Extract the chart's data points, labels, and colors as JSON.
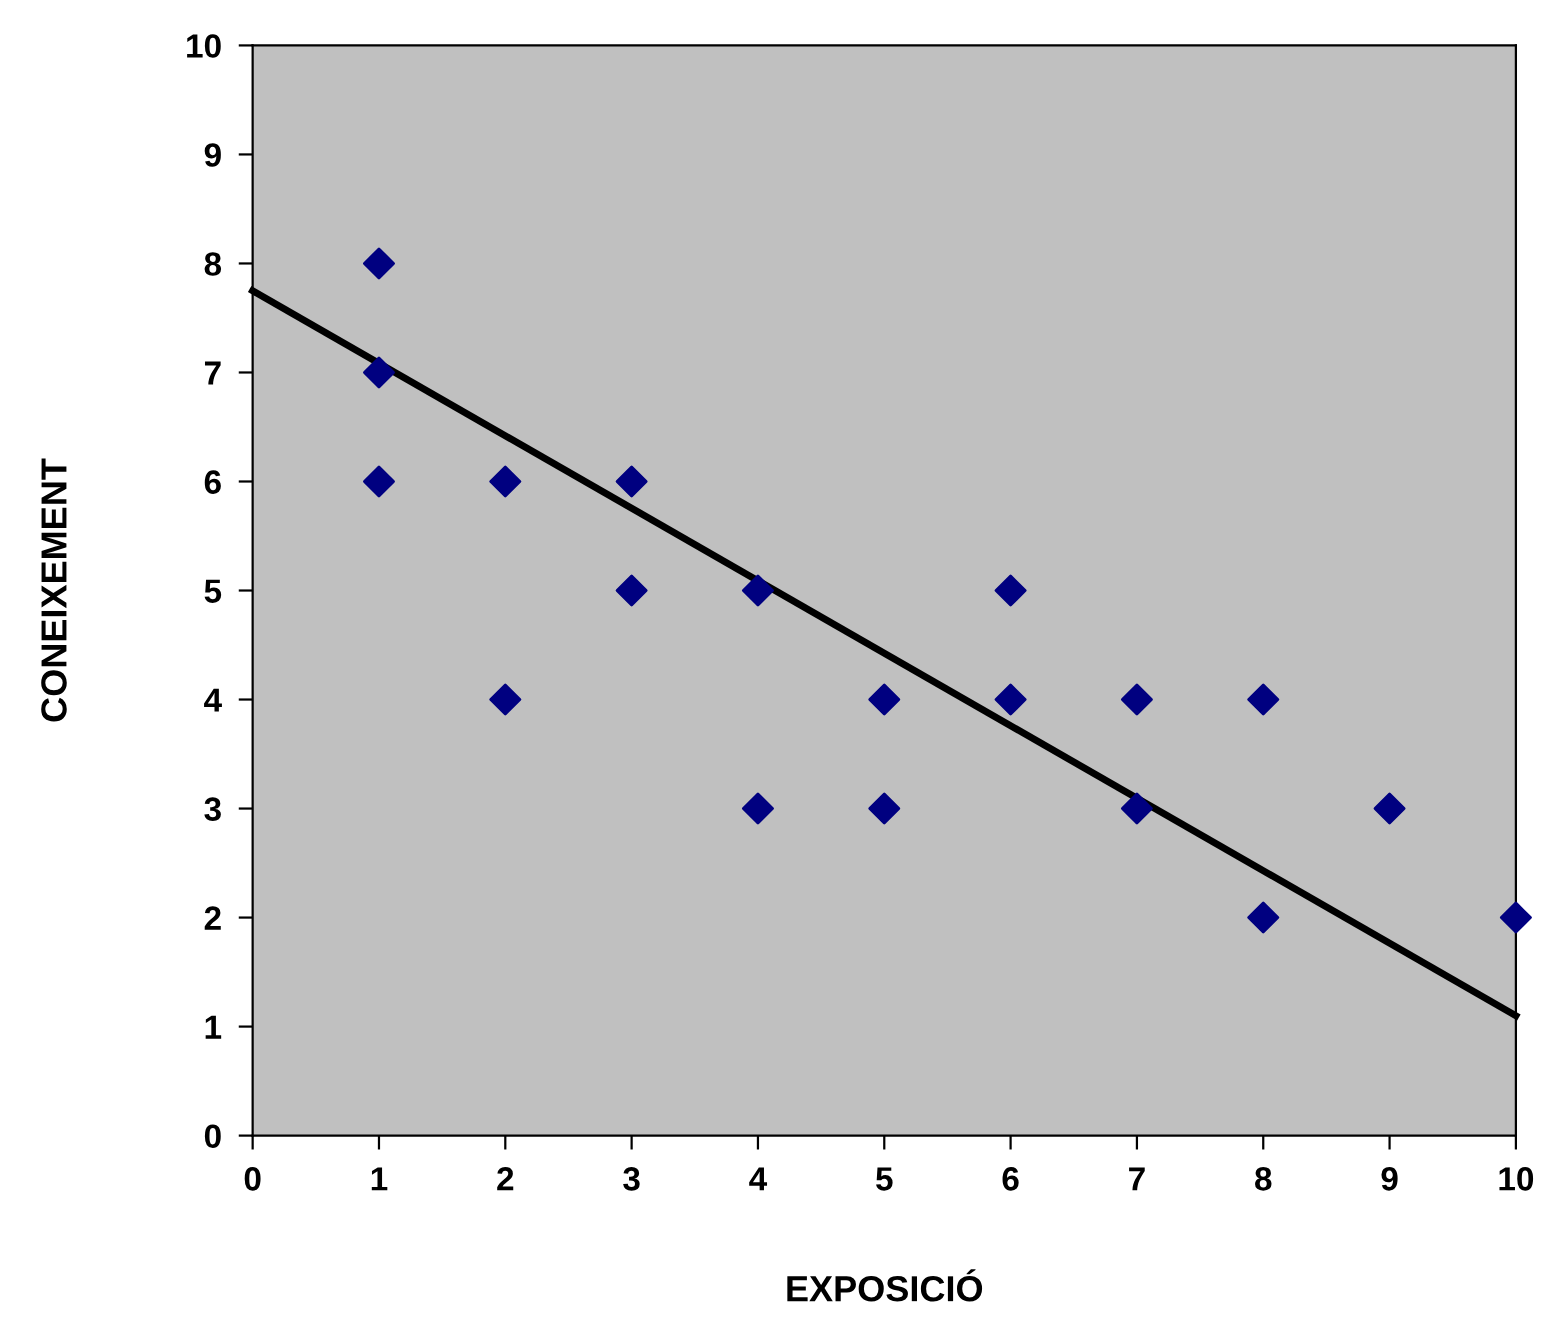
{
  "chart_data": {
    "type": "scatter",
    "xlabel": "EXPOSICIÓ",
    "ylabel": "CONEIXEMENT",
    "xlim": [
      0,
      10
    ],
    "ylim": [
      0,
      10
    ],
    "xticks": [
      0,
      1,
      2,
      3,
      4,
      5,
      6,
      7,
      8,
      9,
      10
    ],
    "yticks": [
      0,
      1,
      2,
      3,
      4,
      5,
      6,
      7,
      8,
      9,
      10
    ],
    "series": [
      {
        "type": "scatter",
        "color": "#000080",
        "marker": "diamond",
        "x": [
          1,
          1,
          1,
          2,
          2,
          3,
          3,
          4,
          4,
          5,
          5,
          6,
          6,
          7,
          7,
          8,
          8,
          9,
          10
        ],
        "values": [
          8,
          7,
          6,
          6,
          4,
          6,
          5,
          5,
          3,
          4,
          3,
          5,
          4,
          4,
          3,
          4,
          2,
          3,
          2
        ]
      },
      {
        "type": "line",
        "color": "#000000",
        "marker": "none",
        "x": [
          0,
          10
        ],
        "values": [
          7.75,
          1.1
        ]
      }
    ]
  }
}
